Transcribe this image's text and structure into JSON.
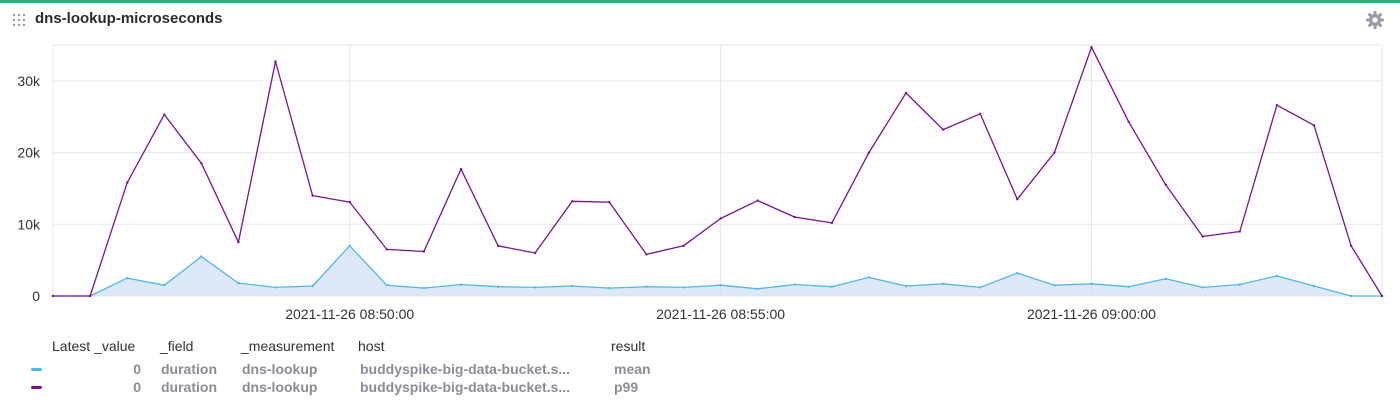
{
  "panel": {
    "title": "dns-lookup-microseconds",
    "icons": {
      "drag": "drag-handle-icon",
      "settings": "gear-icon"
    }
  },
  "chart_data": {
    "type": "line",
    "title": "dns-lookup-microseconds",
    "xlabel": "",
    "ylabel": "",
    "ylim": [
      0,
      35000
    ],
    "y_ticks": [
      0,
      10000,
      20000,
      30000
    ],
    "y_tick_labels": [
      "0",
      "10k",
      "20k",
      "30k"
    ],
    "x_range": [
      "2021-11-26 08:46:00",
      "2021-11-26 09:03:55"
    ],
    "x_ticks": [
      "2021-11-26 08:50:00",
      "2021-11-26 08:55:00",
      "2021-11-26 09:00:00"
    ],
    "x_tick_labels": [
      "2021-11-26 08:50:00",
      "2021-11-26 08:55:00",
      "2021-11-26 09:00:00"
    ],
    "grid": true,
    "legend": "table-bottom",
    "series": [
      {
        "name": "mean",
        "color": "#4fb8f0",
        "fill": "#d5e3f6",
        "x": [
          "2021-11-26 08:46:00",
          "2021-11-26 08:46:30",
          "2021-11-26 08:47:00",
          "2021-11-26 08:47:30",
          "2021-11-26 08:48:00",
          "2021-11-26 08:48:30",
          "2021-11-26 08:49:00",
          "2021-11-26 08:49:30",
          "2021-11-26 08:50:00",
          "2021-11-26 08:50:30",
          "2021-11-26 08:51:00",
          "2021-11-26 08:51:30",
          "2021-11-26 08:52:00",
          "2021-11-26 08:52:30",
          "2021-11-26 08:53:00",
          "2021-11-26 08:53:30",
          "2021-11-26 08:54:00",
          "2021-11-26 08:54:30",
          "2021-11-26 08:55:00",
          "2021-11-26 08:55:30",
          "2021-11-26 08:56:00",
          "2021-11-26 08:56:30",
          "2021-11-26 08:57:00",
          "2021-11-26 08:57:30",
          "2021-11-26 08:58:00",
          "2021-11-26 08:58:30",
          "2021-11-26 08:59:00",
          "2021-11-26 08:59:30",
          "2021-11-26 09:00:00",
          "2021-11-26 09:00:30",
          "2021-11-26 09:01:00",
          "2021-11-26 09:01:30",
          "2021-11-26 09:02:00",
          "2021-11-26 09:02:30",
          "2021-11-26 09:03:00",
          "2021-11-26 09:03:30",
          "2021-11-26 09:03:55"
        ],
        "values": [
          0,
          0,
          2500,
          1500,
          5500,
          1800,
          1200,
          1400,
          7000,
          1500,
          1100,
          1600,
          1300,
          1200,
          1400,
          1100,
          1300,
          1200,
          1500,
          1000,
          1600,
          1300,
          2600,
          1400,
          1700,
          1200,
          3200,
          1500,
          1700,
          1300,
          2400,
          1200,
          1600,
          2800,
          1400,
          0,
          0
        ]
      },
      {
        "name": "p99",
        "color": "#7b138f",
        "x": [
          "2021-11-26 08:46:00",
          "2021-11-26 08:46:30",
          "2021-11-26 08:47:00",
          "2021-11-26 08:47:30",
          "2021-11-26 08:48:00",
          "2021-11-26 08:48:30",
          "2021-11-26 08:49:00",
          "2021-11-26 08:49:30",
          "2021-11-26 08:50:00",
          "2021-11-26 08:50:30",
          "2021-11-26 08:51:00",
          "2021-11-26 08:51:30",
          "2021-11-26 08:52:00",
          "2021-11-26 08:52:30",
          "2021-11-26 08:53:00",
          "2021-11-26 08:53:30",
          "2021-11-26 08:54:00",
          "2021-11-26 08:54:30",
          "2021-11-26 08:55:00",
          "2021-11-26 08:55:30",
          "2021-11-26 08:56:00",
          "2021-11-26 08:56:30",
          "2021-11-26 08:57:00",
          "2021-11-26 08:57:30",
          "2021-11-26 08:58:00",
          "2021-11-26 08:58:30",
          "2021-11-26 08:59:00",
          "2021-11-26 08:59:30",
          "2021-11-26 09:00:00",
          "2021-11-26 09:00:30",
          "2021-11-26 09:01:00",
          "2021-11-26 09:01:30",
          "2021-11-26 09:02:00",
          "2021-11-26 09:02:30",
          "2021-11-26 09:03:00",
          "2021-11-26 09:03:30",
          "2021-11-26 09:03:55"
        ],
        "values": [
          0,
          0,
          15800,
          25300,
          18500,
          7500,
          32700,
          14000,
          13100,
          6500,
          6200,
          17700,
          7000,
          6000,
          13200,
          13100,
          5800,
          7000,
          10800,
          13300,
          11000,
          10200,
          20000,
          28300,
          23200,
          25400,
          13500,
          20000,
          34700,
          24300,
          15500,
          8300,
          9000,
          26600,
          23800,
          7000,
          0
        ]
      }
    ]
  },
  "legend": {
    "headers": {
      "latest": "Latest _value",
      "field": "_field",
      "measurement": "_measurement",
      "host": "host",
      "result": "result"
    },
    "rows": [
      {
        "color": "#4fb8f0",
        "latest": "0",
        "field": "duration",
        "measurement": "dns-lookup",
        "host": "buddyspike-big-data-bucket.s...",
        "result": "mean"
      },
      {
        "color": "#7b138f",
        "latest": "0",
        "field": "duration",
        "measurement": "dns-lookup",
        "host": "buddyspike-big-data-bucket.s...",
        "result": "p99"
      }
    ]
  }
}
